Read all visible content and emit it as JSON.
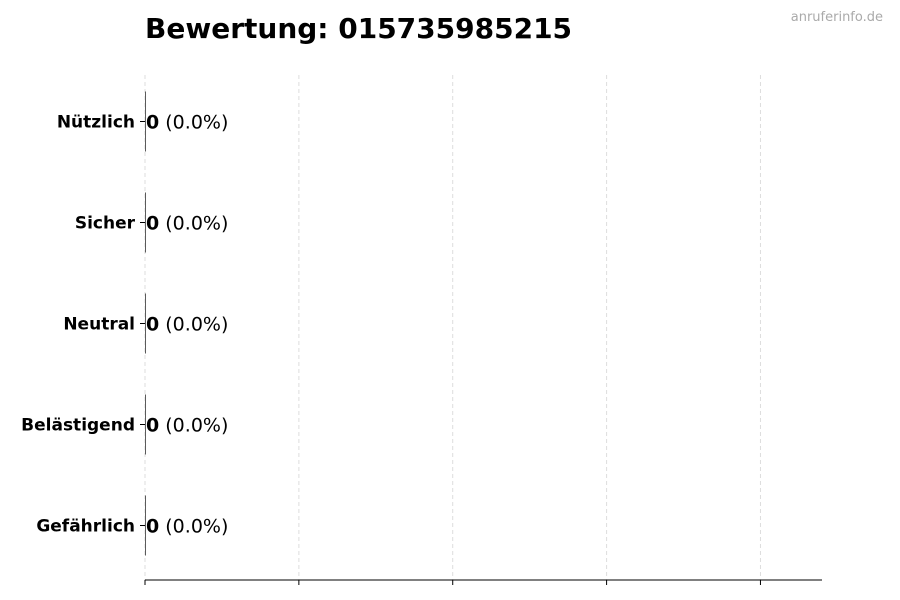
{
  "chart_data": {
    "type": "bar",
    "orientation": "horizontal",
    "title": "Bewertung: 015735985215",
    "categories": [
      "Nützlich",
      "Sicher",
      "Neutral",
      "Belästigend",
      "Gefährlich"
    ],
    "values": [
      0,
      0,
      0,
      0,
      0
    ],
    "value_labels": [
      "0",
      "0",
      "0",
      "0",
      "0"
    ],
    "percent_labels": [
      "(0.0%)",
      "(0.0%)",
      "(0.0%)",
      "(0.0%)",
      "(0.0%)"
    ],
    "xlabel": "",
    "ylabel": "",
    "xlim": [
      0,
      4.4
    ],
    "xticks": [
      0,
      1,
      2,
      3,
      4
    ],
    "x_tick_labels_shown": false,
    "grid": "vertical dashed",
    "legend": "none",
    "colors": {
      "bar_edge": "#333333",
      "grid": "#dddddd",
      "axis": "#000000"
    }
  },
  "watermark": "anruferinfo.de"
}
